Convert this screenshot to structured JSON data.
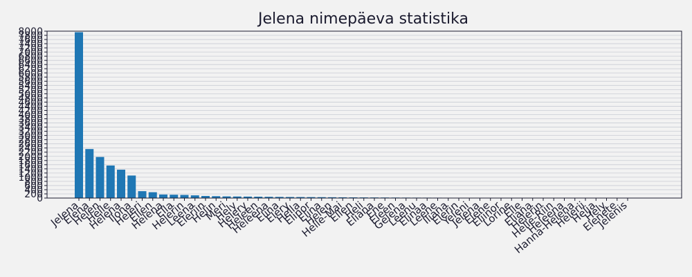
{
  "chart_data": {
    "type": "bar",
    "title": "Jelena nimepäeva statistika",
    "xlabel": "",
    "ylabel": "",
    "ylim": [
      0,
      8000
    ],
    "yticks": [
      0,
      200,
      400,
      600,
      800,
      1000,
      1200,
      1400,
      1600,
      1800,
      2000,
      2200,
      2400,
      2600,
      2800,
      3000,
      3200,
      3400,
      3600,
      3800,
      4000,
      4200,
      4400,
      4600,
      4800,
      5000,
      5200,
      5400,
      5600,
      5800,
      6000,
      6200,
      6400,
      6600,
      6800,
      7000,
      7200,
      7400,
      7600,
      7800,
      8000
    ],
    "grid": true,
    "categories": [
      "Jelena",
      "Elena",
      "Helen",
      "Helle",
      "Helena",
      "Ilona",
      "Heleri",
      "Ellen",
      "Helena",
      "Ella",
      "Helerin",
      "Leena",
      "Eleriin",
      "Helin",
      "Meri",
      "Hely",
      "Helery",
      "Heleen",
      "Heleena",
      "Elina",
      "Elery",
      "Hella",
      "Elinor",
      "Elina",
      "Helen",
      "Helle-Mai",
      "Ellen",
      "Heli",
      "Eliana",
      "Ene",
      "Eleen",
      "Gelena",
      "Leenu",
      "Elinaa",
      "Leene",
      "Iliana",
      "Elerin",
      "Yeleni",
      "Jelena",
      "Elene",
      "Eliinor",
      "Lorine",
      "Elle",
      "Eliana",
      "Helerin",
      "Helle-Riin",
      "Heleena",
      "Hanna-Helena",
      "Helerii",
      "Helja",
      "Hely",
      "Elenete",
      "Jelenis"
    ],
    "values": [
      7950,
      2350,
      1970,
      1560,
      1360,
      1080,
      330,
      280,
      170,
      160,
      150,
      130,
      100,
      90,
      80,
      75,
      70,
      65,
      60,
      55,
      50,
      48,
      45,
      42,
      38,
      35,
      32,
      30,
      28,
      26,
      24,
      22,
      20,
      19,
      18,
      17,
      16,
      15,
      14,
      13,
      12,
      11,
      10,
      9,
      8,
      7,
      6,
      5,
      4,
      3,
      3,
      2,
      2
    ]
  }
}
